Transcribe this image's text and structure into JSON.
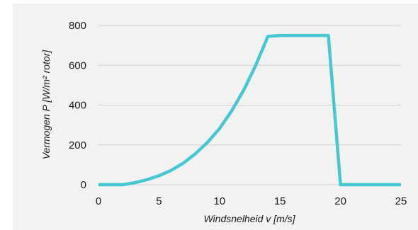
{
  "chart_data": {
    "type": "line",
    "xlabel": "Windsnelheid v [m/s]",
    "ylabel": "Vermogen P [W/m² rotor]",
    "xlim": [
      0,
      25
    ],
    "ylim": [
      0,
      800
    ],
    "x_ticks": [
      0,
      5,
      10,
      15,
      20,
      25
    ],
    "y_ticks": [
      0,
      200,
      400,
      600,
      800
    ],
    "grid": "horizontal",
    "line_color": "#46c8d2",
    "series": [
      {
        "x": [
          0,
          2,
          3,
          4,
          5,
          6,
          7,
          8,
          9,
          10,
          11,
          12,
          13,
          14,
          15,
          16,
          17,
          18,
          19,
          20,
          21,
          22,
          23,
          24,
          25
        ],
        "y": [
          0,
          0,
          10,
          25,
          45,
          72,
          108,
          155,
          212,
          282,
          370,
          475,
          600,
          745,
          750,
          750,
          750,
          750,
          750,
          0,
          0,
          0,
          0,
          0,
          0
        ]
      }
    ]
  }
}
